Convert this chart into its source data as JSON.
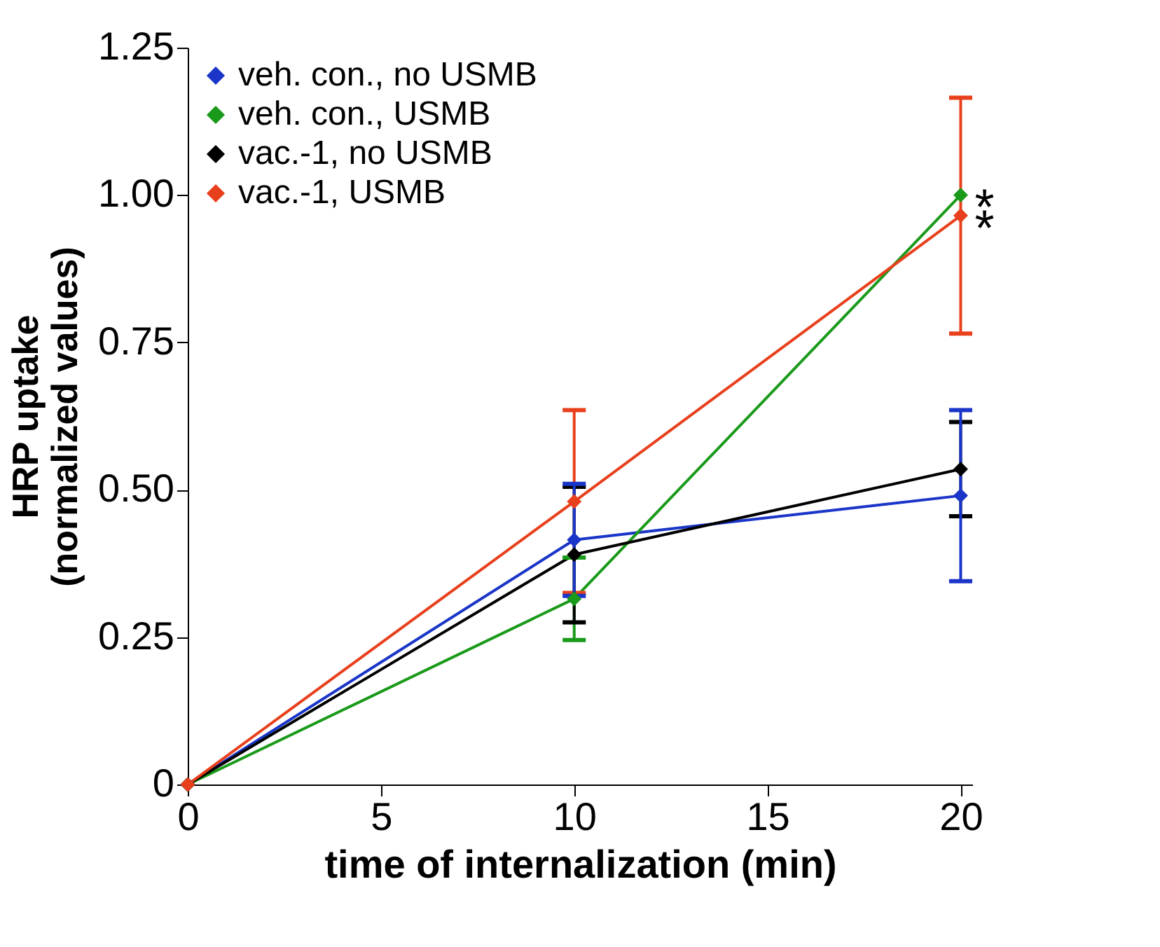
{
  "chart_data": {
    "type": "line",
    "xlabel": "time of internalization (min)",
    "ylabel": "HRP uptake\n(normalized values)",
    "x": [
      0,
      10,
      20
    ],
    "xlim": [
      0,
      20.3
    ],
    "xticks": [
      0,
      5,
      10,
      15,
      20
    ],
    "ylim": [
      0,
      1.25
    ],
    "yticks": [
      {
        "value": 0,
        "label": "0"
      },
      {
        "value": 0.25,
        "label": "0.25"
      },
      {
        "value": 0.5,
        "label": "0.50"
      },
      {
        "value": 0.75,
        "label": "0.75"
      },
      {
        "value": 1.0,
        "label": "1.00"
      },
      {
        "value": 1.25,
        "label": "1.25"
      }
    ],
    "grid": false,
    "legend": "top left",
    "marker": "diamond",
    "line_style": "solid",
    "series": [
      {
        "name": "veh. con., no USMB",
        "color": "#1a35c8",
        "values": [
          0,
          0.415,
          0.49
        ],
        "errors": [
          null,
          0.095,
          0.145
        ]
      },
      {
        "name": "veh. con., USMB",
        "color": "#1a9a1a",
        "values": [
          0,
          0.315,
          1.0
        ],
        "errors": [
          null,
          0.07,
          null
        ]
      },
      {
        "name": "vac.-1, no USMB",
        "color": "#000000",
        "values": [
          0,
          0.39,
          0.535
        ],
        "errors": [
          null,
          0.115,
          0.08
        ]
      },
      {
        "name": "vac.-1, USMB",
        "color": "#e8401c",
        "values": [
          0,
          0.48,
          0.965
        ],
        "errors": [
          null,
          0.155,
          0.2
        ]
      }
    ],
    "annotations": [
      {
        "text": "*",
        "x": 20,
        "y": 1.0
      },
      {
        "text": "*",
        "x": 20,
        "y": 0.965
      }
    ]
  }
}
